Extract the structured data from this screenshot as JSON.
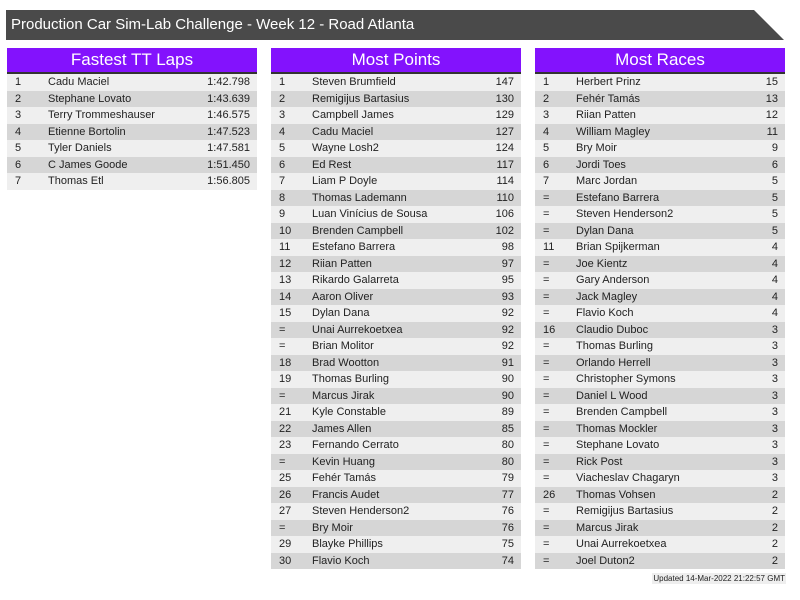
{
  "title": "Production Car Sim-Lab Challenge - Week 12 - Road Atlanta",
  "accent_color": "#8312fd",
  "tables": [
    {
      "heading": "Fastest TT Laps",
      "rows": [
        [
          "1",
          "Cadu Maciel",
          "1:42.798"
        ],
        [
          "2",
          "Stephane Lovato",
          "1:43.639"
        ],
        [
          "3",
          "Terry Trommeshauser",
          "1:46.575"
        ],
        [
          "4",
          "Etienne Bortolin",
          "1:47.523"
        ],
        [
          "5",
          "Tyler Daniels",
          "1:47.581"
        ],
        [
          "6",
          "C James Goode",
          "1:51.450"
        ],
        [
          "7",
          "Thomas Etl",
          "1:56.805"
        ]
      ]
    },
    {
      "heading": "Most Points",
      "rows": [
        [
          "1",
          "Steven Brumfield",
          "147"
        ],
        [
          "2",
          "Remigijus Bartasius",
          "130"
        ],
        [
          "3",
          "Campbell James",
          "129"
        ],
        [
          "4",
          "Cadu Maciel",
          "127"
        ],
        [
          "5",
          "Wayne Losh2",
          "124"
        ],
        [
          "6",
          "Ed Rest",
          "117"
        ],
        [
          "7",
          "Liam P Doyle",
          "114"
        ],
        [
          "8",
          "Thomas Lademann",
          "110"
        ],
        [
          "9",
          "Luan Vinícius de Sousa",
          "106"
        ],
        [
          "10",
          "Brenden Campbell",
          "102"
        ],
        [
          "11",
          "Estefano Barrera",
          "98"
        ],
        [
          "12",
          "Riian Patten",
          "97"
        ],
        [
          "13",
          "Rikardo Galarreta",
          "95"
        ],
        [
          "14",
          "Aaron Oliver",
          "93"
        ],
        [
          "15",
          "Dylan Dana",
          "92"
        ],
        [
          "=",
          "Unai Aurrekoetxea",
          "92"
        ],
        [
          "=",
          "Brian Molitor",
          "92"
        ],
        [
          "18",
          "Brad Wootton",
          "91"
        ],
        [
          "19",
          "Thomas Burling",
          "90"
        ],
        [
          "=",
          "Marcus Jirak",
          "90"
        ],
        [
          "21",
          "Kyle Constable",
          "89"
        ],
        [
          "22",
          "James Allen",
          "85"
        ],
        [
          "23",
          "Fernando Cerrato",
          "80"
        ],
        [
          "=",
          "Kevin Huang",
          "80"
        ],
        [
          "25",
          "Fehér Tamás",
          "79"
        ],
        [
          "26",
          "Francis Audet",
          "77"
        ],
        [
          "27",
          "Steven Henderson2",
          "76"
        ],
        [
          "=",
          "Bry Moir",
          "76"
        ],
        [
          "29",
          "Blayke Phillips",
          "75"
        ],
        [
          "30",
          "Flavio Koch",
          "74"
        ]
      ]
    },
    {
      "heading": "Most Races",
      "rows": [
        [
          "1",
          "Herbert Prinz",
          "15"
        ],
        [
          "2",
          "Fehér Tamás",
          "13"
        ],
        [
          "3",
          "Riian Patten",
          "12"
        ],
        [
          "4",
          "William Magley",
          "11"
        ],
        [
          "5",
          "Bry Moir",
          "9"
        ],
        [
          "6",
          "Jordi Toes",
          "6"
        ],
        [
          "7",
          "Marc Jordan",
          "5"
        ],
        [
          "=",
          "Estefano Barrera",
          "5"
        ],
        [
          "=",
          "Steven Henderson2",
          "5"
        ],
        [
          "=",
          "Dylan Dana",
          "5"
        ],
        [
          "11",
          "Brian Spijkerman",
          "4"
        ],
        [
          "=",
          "Joe Kientz",
          "4"
        ],
        [
          "=",
          "Gary Anderson",
          "4"
        ],
        [
          "=",
          "Jack Magley",
          "4"
        ],
        [
          "=",
          "Flavio Koch",
          "4"
        ],
        [
          "16",
          "Claudio Duboc",
          "3"
        ],
        [
          "=",
          "Thomas Burling",
          "3"
        ],
        [
          "=",
          "Orlando Herrell",
          "3"
        ],
        [
          "=",
          "Christopher Symons",
          "3"
        ],
        [
          "=",
          "Daniel L Wood",
          "3"
        ],
        [
          "=",
          "Brenden Campbell",
          "3"
        ],
        [
          "=",
          "Thomas Mockler",
          "3"
        ],
        [
          "=",
          "Stephane Lovato",
          "3"
        ],
        [
          "=",
          "Rick Post",
          "3"
        ],
        [
          "=",
          "Viacheslav Chagaryn",
          "3"
        ],
        [
          "26",
          "Thomas Vohsen",
          "2"
        ],
        [
          "=",
          "Remigijus Bartasius",
          "2"
        ],
        [
          "=",
          "Marcus Jirak",
          "2"
        ],
        [
          "=",
          "Unai Aurrekoetxea",
          "2"
        ],
        [
          "=",
          "Joel Duton2",
          "2"
        ]
      ]
    }
  ],
  "updated": "Updated 14-Mar-2022 21:22:57 GMT"
}
